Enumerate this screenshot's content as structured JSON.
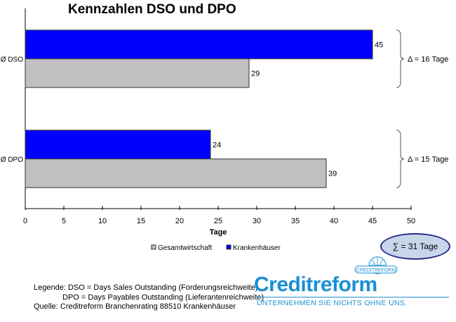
{
  "chart_data": {
    "type": "bar",
    "orientation": "horizontal",
    "title": "Kennzahlen DSO und DPO",
    "xlabel": "Tage",
    "xlim": [
      0,
      50
    ],
    "xticks": [
      0,
      5,
      10,
      15,
      20,
      25,
      30,
      35,
      40,
      45,
      50
    ],
    "categories": [
      "Ø DSO",
      "Ø DPO"
    ],
    "series": [
      {
        "name": "Krankenhäuser",
        "values": [
          45,
          24
        ],
        "color": "#0000ff"
      },
      {
        "name": "Gesamtwirtschaft",
        "values": [
          29,
          39
        ],
        "color": "#c0c0c0"
      }
    ],
    "annotations": [
      "Δ = 16 Tage",
      "Δ = 15 Tage"
    ],
    "legend": "bottom",
    "grid": false
  },
  "sum_label": "∑ = 31 Tage",
  "footer": {
    "line1": "Legende: DSO = Days Sales Outstanding (Forderungsreichweite)",
    "line2": "DPO = Days Payables Outstanding (Lieferantenreichweite)",
    "line3": "Quelle: Creditreform Branchenrating 88510 Krankenhäuser"
  },
  "logo": {
    "name": "Creditreform",
    "slogan": "UNTERNEHMEN SIE NICHTS OHNE UNS.",
    "badge": "CREDITREFORM"
  }
}
